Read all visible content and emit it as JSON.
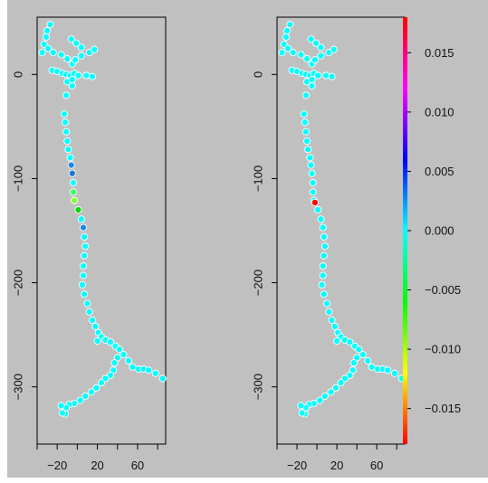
{
  "colors": {
    "background": "#c0c0c0",
    "default_point": "#00ffff",
    "point_outline": "#ffffff"
  },
  "chart_data": [
    {
      "type": "scatter",
      "title": "",
      "xlabel": "",
      "ylabel": "",
      "xlim": [
        -40,
        88
      ],
      "ylim": [
        -355,
        55
      ],
      "grid": false,
      "x_ticks": [
        -20,
        20,
        60
      ],
      "x_tick_marks": [
        -40,
        -20,
        0,
        20,
        40,
        60,
        80
      ],
      "y_ticks": [
        0,
        -100,
        -200,
        -300
      ],
      "y_tick_labels": [
        "0",
        "−100",
        "−200",
        "−300"
      ],
      "points": [
        {
          "x": -27,
          "y": 48
        },
        {
          "x": -30,
          "y": 42
        },
        {
          "x": -31,
          "y": 36
        },
        {
          "x": -33,
          "y": 29
        },
        {
          "x": -29,
          "y": 25
        },
        {
          "x": -35,
          "y": 21
        },
        {
          "x": -24,
          "y": 21
        },
        {
          "x": -16,
          "y": 19
        },
        {
          "x": -6,
          "y": 34
        },
        {
          "x": -1,
          "y": 30
        },
        {
          "x": 4,
          "y": 26
        },
        {
          "x": 12,
          "y": 21
        },
        {
          "x": 17,
          "y": 24
        },
        {
          "x": 4,
          "y": 18
        },
        {
          "x": -10,
          "y": 15
        },
        {
          "x": -5,
          "y": 10
        },
        {
          "x": -2,
          "y": 14
        },
        {
          "x": -25,
          "y": 4
        },
        {
          "x": -20,
          "y": 3
        },
        {
          "x": -15,
          "y": 1
        },
        {
          "x": -11,
          "y": 0
        },
        {
          "x": -7,
          "y": -1
        },
        {
          "x": -3,
          "y": 1
        },
        {
          "x": 1,
          "y": -1
        },
        {
          "x": 9,
          "y": -1
        },
        {
          "x": 15,
          "y": -2
        },
        {
          "x": -10,
          "y": -7
        },
        {
          "x": -5,
          "y": -5
        },
        {
          "x": -5,
          "y": -11
        },
        {
          "x": -11,
          "y": -20
        },
        {
          "x": -13,
          "y": -38
        },
        {
          "x": -12,
          "y": -46
        },
        {
          "x": -11,
          "y": -55
        },
        {
          "x": -10,
          "y": -64
        },
        {
          "x": -9,
          "y": -72
        },
        {
          "x": -7,
          "y": -80
        },
        {
          "x": -6,
          "y": -87,
          "color": "#1e88e5"
        },
        {
          "x": -5,
          "y": -95,
          "color": "#1976d2"
        },
        {
          "x": -4,
          "y": -104
        },
        {
          "x": -4,
          "y": -113,
          "color": "#33ff66"
        },
        {
          "x": -3,
          "y": -121,
          "color": "#8cff33"
        },
        {
          "x": 1,
          "y": -130,
          "color": "#00dd00"
        },
        {
          "x": 4,
          "y": -139
        },
        {
          "x": 6,
          "y": -147,
          "color": "#1e88e5"
        },
        {
          "x": 7,
          "y": -156
        },
        {
          "x": 8,
          "y": -165
        },
        {
          "x": 7,
          "y": -174
        },
        {
          "x": 6,
          "y": -184
        },
        {
          "x": 6,
          "y": -193
        },
        {
          "x": 5,
          "y": -202
        },
        {
          "x": 7,
          "y": -211
        },
        {
          "x": 10,
          "y": -220
        },
        {
          "x": 12,
          "y": -228
        },
        {
          "x": 15,
          "y": -236
        },
        {
          "x": 18,
          "y": -242
        },
        {
          "x": 21,
          "y": -248
        },
        {
          "x": 24,
          "y": -252
        },
        {
          "x": 20,
          "y": -256
        },
        {
          "x": 28,
          "y": -255
        },
        {
          "x": 33,
          "y": -257
        },
        {
          "x": 38,
          "y": -261
        },
        {
          "x": 42,
          "y": -264
        },
        {
          "x": 46,
          "y": -269
        },
        {
          "x": 51,
          "y": -275
        },
        {
          "x": 55,
          "y": -281
        },
        {
          "x": 61,
          "y": -283
        },
        {
          "x": 66,
          "y": -283
        },
        {
          "x": 71,
          "y": -284
        },
        {
          "x": 78,
          "y": -287
        },
        {
          "x": 85,
          "y": -292
        },
        {
          "x": 40,
          "y": -272
        },
        {
          "x": 37,
          "y": -277
        },
        {
          "x": 36,
          "y": -284
        },
        {
          "x": 33,
          "y": -289
        },
        {
          "x": 28,
          "y": -292
        },
        {
          "x": 24,
          "y": -296
        },
        {
          "x": 19,
          "y": -301
        },
        {
          "x": 14,
          "y": -305
        },
        {
          "x": 8,
          "y": -309
        },
        {
          "x": 3,
          "y": -313
        },
        {
          "x": -3,
          "y": -316
        },
        {
          "x": -8,
          "y": -317
        },
        {
          "x": -11,
          "y": -320
        },
        {
          "x": -16,
          "y": -318
        },
        {
          "x": -12,
          "y": -326
        },
        {
          "x": -15,
          "y": -325
        }
      ]
    },
    {
      "type": "scatter",
      "title": "",
      "xlabel": "",
      "ylabel": "",
      "xlim": [
        -40,
        88
      ],
      "ylim": [
        -355,
        55
      ],
      "grid": false,
      "x_ticks": [
        -20,
        20,
        60
      ],
      "x_tick_marks": [
        -40,
        -20,
        0,
        20,
        40,
        60,
        80
      ],
      "y_ticks": [
        0,
        -100,
        -200,
        -300
      ],
      "y_tick_labels": [
        "0",
        "−100",
        "−200",
        "−300"
      ],
      "highlight": {
        "x": -2,
        "y": -123,
        "color": "#ff0000"
      },
      "colorbar": {
        "position": "right",
        "range": [
          -0.018,
          0.018
        ],
        "ticks": [
          0.015,
          0.01,
          0.005,
          0.0,
          -0.005,
          -0.01,
          -0.015
        ],
        "tick_labels": [
          "0.015",
          "0.010",
          "0.005",
          "0.000",
          "−0.005",
          "−0.010",
          "−0.015"
        ],
        "gradient_top_to_bottom": [
          "#ff0000",
          "#ff00ff",
          "#0000ff",
          "#00ffff",
          "#00ff00",
          "#ffff00",
          "#ff0000"
        ]
      }
    }
  ]
}
